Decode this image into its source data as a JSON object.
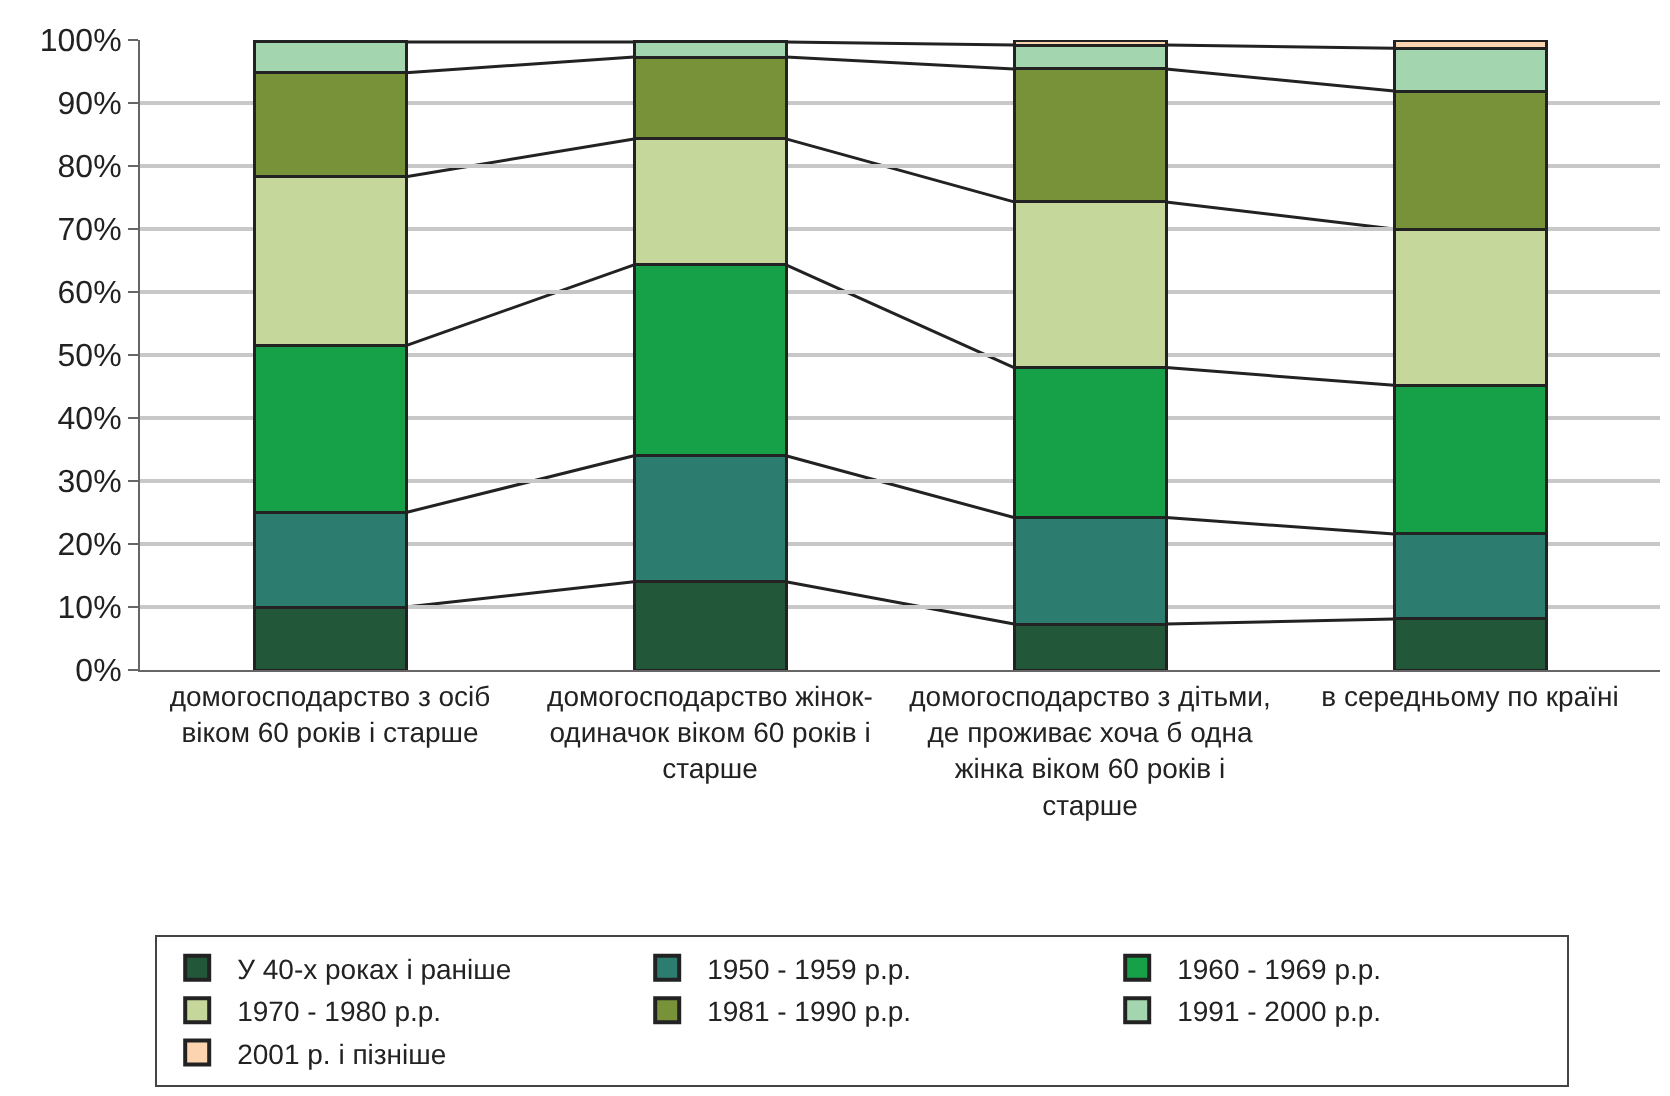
{
  "chart_data": {
    "type": "bar",
    "stacked": true,
    "categories": [
      "домогосподарство з осіб віком 60 років і старше",
      "домогосподарство жінок-одиначок віком 60 років і старше",
      "домогосподарство з дітьми, де проживає хоча б одна жінка віком 60 років і старше",
      "в середньому по країні"
    ],
    "series": [
      {
        "name": "У 40-х роках і раніше",
        "color": "#22573a",
        "values": [
          10,
          14,
          7.3,
          8.1
        ]
      },
      {
        "name": "1950 - 1959 р.р.",
        "color": "#2c7c70",
        "values": [
          15,
          20,
          16.9,
          13.5
        ]
      },
      {
        "name": "1960 - 1969 р.р.",
        "color": "#16a047",
        "values": [
          26.5,
          30.3,
          23.8,
          23.6
        ]
      },
      {
        "name": "1970 - 1980 р.р.",
        "color": "#c5d79b",
        "values": [
          26.8,
          20,
          26.3,
          24.8
        ]
      },
      {
        "name": "1981 - 1990 р.р.",
        "color": "#789239",
        "values": [
          16.5,
          13,
          21.1,
          21.9
        ]
      },
      {
        "name": "1991 - 2000 р.р.",
        "color": "#a3d6ae",
        "values": [
          4.9,
          2.4,
          3.8,
          6.8
        ]
      },
      {
        "name": "2001 р. і пізніше",
        "color": "#fcd5b0",
        "values": [
          0.3,
          0.3,
          0.8,
          1.3
        ]
      }
    ],
    "ylim": [
      0,
      100
    ],
    "yticks": [
      {
        "value": 0,
        "label": "0%"
      },
      {
        "value": 10,
        "label": "10%"
      },
      {
        "value": 20,
        "label": "20%"
      },
      {
        "value": 30,
        "label": "30%"
      },
      {
        "value": 40,
        "label": "40%"
      },
      {
        "value": 50,
        "label": "50%"
      },
      {
        "value": 60,
        "label": "60%"
      },
      {
        "value": 70,
        "label": "70%"
      },
      {
        "value": 80,
        "label": "80%"
      },
      {
        "value": 90,
        "label": "90%"
      },
      {
        "value": 100,
        "label": "100%"
      }
    ],
    "grid": "y",
    "legend": "bottom"
  }
}
